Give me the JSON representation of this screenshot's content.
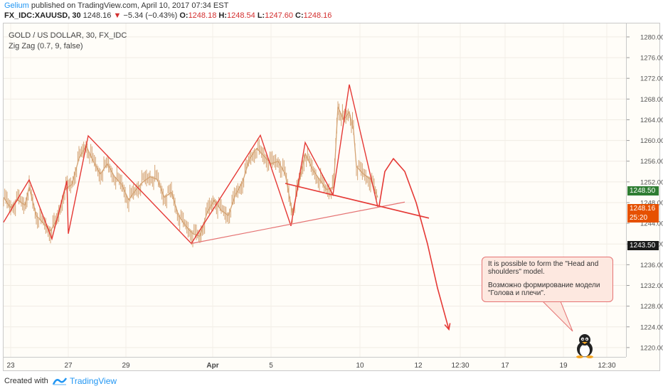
{
  "header": {
    "publisher": "Gelium",
    "published_text": "published on TradingView.com, April 10, 2017 07:34 EST",
    "symbol": "FX_IDC:XAUUSD, 30",
    "last": "1248.16",
    "change_arrow": "▼",
    "change": "−5.34 (−0.43%)",
    "o_label": "O:",
    "o_value": "1248.18",
    "h_label": "H:",
    "h_value": "1248.54",
    "l_label": "L:",
    "l_value": "1247.60",
    "c_label": "C:",
    "c_value": "1248.16"
  },
  "legend": {
    "title": "GOLD / US DOLLAR, 30, FX_IDC",
    "indicator": "Zig Zag (0.7, 9, false)"
  },
  "price_tags": [
    {
      "label": "1248.50",
      "color": "#2e7d32"
    },
    {
      "label": "1248.16",
      "color": "#e65100"
    },
    {
      "label": "25:20",
      "color": "#e65100"
    },
    {
      "label": "1243.50",
      "color": "#1a1a1a"
    }
  ],
  "callout": {
    "en": "It is possible to form the \"Head and shoulders\" model.",
    "ru": "Возможно формирование модели \"Голова и плечи\"."
  },
  "footer": {
    "created_with": "Created with",
    "brand": "TradingView"
  },
  "colors": {
    "candle": "#d4a373",
    "zigzag": "#e53935",
    "neckline": "#e57373",
    "projection": "#e53935",
    "brand": "#2196f3"
  },
  "chart_data": {
    "type": "line",
    "title": "GOLD / US DOLLAR, 30, FX_IDC",
    "y_ticks": [
      1220,
      1224,
      1228,
      1232,
      1236,
      1240,
      1244,
      1248,
      1252,
      1256,
      1260,
      1264,
      1268,
      1272,
      1276,
      1280
    ],
    "y_tick_labels": [
      "1220.00",
      "1224.00",
      "1228.00",
      "1232.00",
      "1236.00",
      "1240.00",
      "1244.00",
      "1248.00",
      "1252.00",
      "1256.00",
      "1260.00",
      "1264.00",
      "1268.00",
      "1272.00",
      "1276.00",
      "1280.00"
    ],
    "ylim": [
      1218.2,
      1282.6
    ],
    "x_ticks": [
      "23",
      "27",
      "29",
      "Apr",
      "5",
      "10",
      "12",
      "12:30",
      "17",
      "19",
      "12:30"
    ],
    "zigzag": [
      {
        "x": 0,
        "y": 1244.2
      },
      {
        "x": 36,
        "y": 1252.4
      },
      {
        "x": 68,
        "y": 1241.0
      },
      {
        "x": 89,
        "y": 1252.2
      },
      {
        "x": 91,
        "y": 1242.0
      },
      {
        "x": 119,
        "y": 1260.9
      },
      {
        "x": 264,
        "y": 1240.1
      },
      {
        "x": 361,
        "y": 1261.0
      },
      {
        "x": 404,
        "y": 1243.5
      },
      {
        "x": 424,
        "y": 1259.6
      },
      {
        "x": 463,
        "y": 1249.5
      },
      {
        "x": 486,
        "y": 1270.8
      },
      {
        "x": 526,
        "y": 1247.2
      }
    ],
    "price_series": [
      {
        "x": 0,
        "y": 1249.0
      },
      {
        "x": 10,
        "y": 1247.0
      },
      {
        "x": 20,
        "y": 1248.5
      },
      {
        "x": 30,
        "y": 1247.5
      },
      {
        "x": 36,
        "y": 1251.0
      },
      {
        "x": 46,
        "y": 1245.5
      },
      {
        "x": 56,
        "y": 1244.0
      },
      {
        "x": 66,
        "y": 1242.5
      },
      {
        "x": 76,
        "y": 1245.0
      },
      {
        "x": 86,
        "y": 1250.5
      },
      {
        "x": 96,
        "y": 1251.5
      },
      {
        "x": 106,
        "y": 1256.5
      },
      {
        "x": 116,
        "y": 1259.0
      },
      {
        "x": 126,
        "y": 1256.0
      },
      {
        "x": 136,
        "y": 1253.5
      },
      {
        "x": 146,
        "y": 1255.5
      },
      {
        "x": 156,
        "y": 1253.0
      },
      {
        "x": 166,
        "y": 1251.5
      },
      {
        "x": 176,
        "y": 1248.5
      },
      {
        "x": 186,
        "y": 1250.5
      },
      {
        "x": 196,
        "y": 1252.0
      },
      {
        "x": 206,
        "y": 1253.0
      },
      {
        "x": 216,
        "y": 1252.5
      },
      {
        "x": 226,
        "y": 1249.0
      },
      {
        "x": 236,
        "y": 1250.0
      },
      {
        "x": 246,
        "y": 1245.5
      },
      {
        "x": 256,
        "y": 1243.5
      },
      {
        "x": 266,
        "y": 1242.0
      },
      {
        "x": 276,
        "y": 1241.5
      },
      {
        "x": 286,
        "y": 1246.0
      },
      {
        "x": 296,
        "y": 1248.5
      },
      {
        "x": 306,
        "y": 1246.5
      },
      {
        "x": 316,
        "y": 1245.5
      },
      {
        "x": 326,
        "y": 1249.5
      },
      {
        "x": 336,
        "y": 1252.0
      },
      {
        "x": 346,
        "y": 1256.5
      },
      {
        "x": 356,
        "y": 1258.5
      },
      {
        "x": 366,
        "y": 1257.0
      },
      {
        "x": 376,
        "y": 1255.5
      },
      {
        "x": 386,
        "y": 1256.0
      },
      {
        "x": 396,
        "y": 1253.5
      },
      {
        "x": 406,
        "y": 1246.0
      },
      {
        "x": 414,
        "y": 1251.0
      },
      {
        "x": 424,
        "y": 1257.5
      },
      {
        "x": 434,
        "y": 1254.5
      },
      {
        "x": 444,
        "y": 1252.5
      },
      {
        "x": 454,
        "y": 1250.5
      },
      {
        "x": 464,
        "y": 1251.0
      },
      {
        "x": 470,
        "y": 1266.5
      },
      {
        "x": 478,
        "y": 1264.0
      },
      {
        "x": 486,
        "y": 1265.5
      },
      {
        "x": 492,
        "y": 1262.0
      },
      {
        "x": 496,
        "y": 1255.0
      },
      {
        "x": 506,
        "y": 1253.5
      },
      {
        "x": 516,
        "y": 1252.5
      },
      {
        "x": 526,
        "y": 1249.0
      }
    ],
    "neckline": [
      {
        "x": 264,
        "y": 1240.1
      },
      {
        "x": 564,
        "y": 1248.1
      }
    ],
    "shoulder_line": [
      {
        "x": 396,
        "y": 1251.7
      },
      {
        "x": 598,
        "y": 1245.0
      }
    ],
    "projection": [
      {
        "x": 528,
        "y": 1247.4
      },
      {
        "x": 536,
        "y": 1254.0
      },
      {
        "x": 548,
        "y": 1256.5
      },
      {
        "x": 564,
        "y": 1254.0
      },
      {
        "x": 580,
        "y": 1248.0
      },
      {
        "x": 596,
        "y": 1240.0
      },
      {
        "x": 610,
        "y": 1231.5
      },
      {
        "x": 626,
        "y": 1223.5
      }
    ]
  }
}
